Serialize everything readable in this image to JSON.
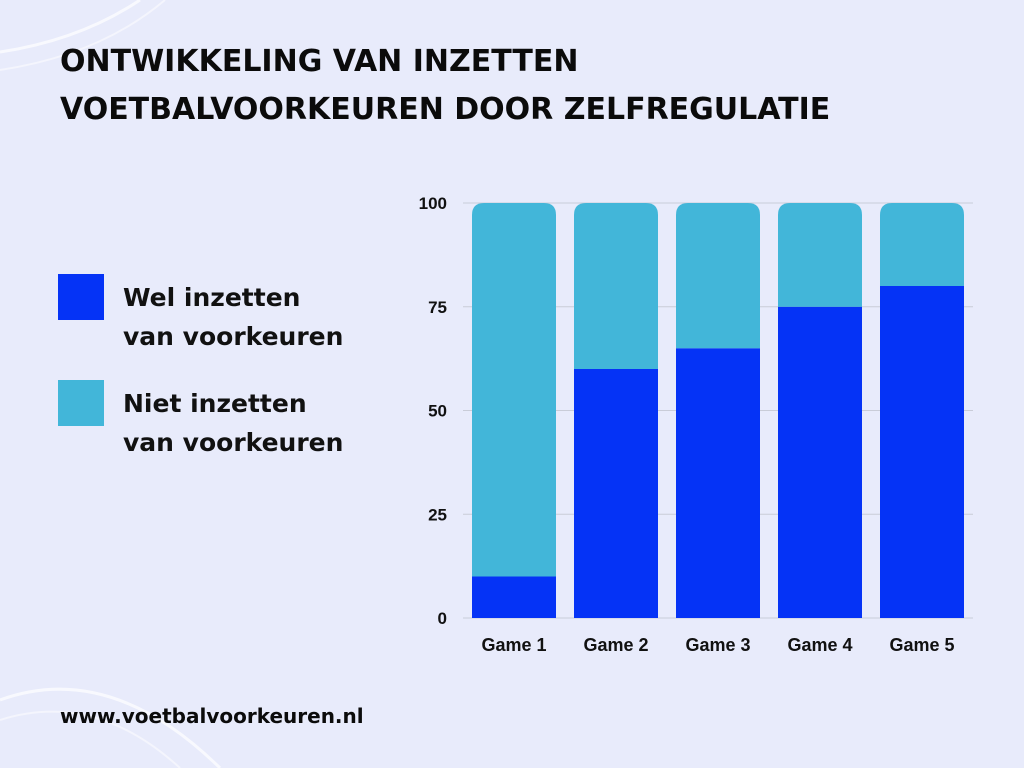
{
  "title_lines": [
    "ONTWIKKELING VAN INZETTEN",
    "VOETBALVOORKEUREN DOOR ZELFREGULATIE"
  ],
  "legend": [
    {
      "lines": [
        "Wel inzetten",
        "van voorkeuren"
      ],
      "color": "#0533f6"
    },
    {
      "lines": [
        "Niet inzetten",
        "van voorkeuren"
      ],
      "color": "#42b6d9"
    }
  ],
  "chart_data": {
    "type": "bar",
    "stacked": true,
    "categories": [
      "Game 1",
      "Game 2",
      "Game 3",
      "Game 4",
      "Game 5"
    ],
    "series": [
      {
        "name": "Wel inzetten van voorkeuren",
        "values": [
          10,
          60,
          65,
          75,
          80
        ],
        "color": "#0533f6"
      },
      {
        "name": "Niet inzetten van voorkeuren",
        "values": [
          90,
          40,
          35,
          25,
          20
        ],
        "color": "#42b6d9"
      }
    ],
    "yticks": [
      0,
      25,
      50,
      75,
      100
    ],
    "ylim": [
      0,
      100
    ],
    "grid": true,
    "legend_position": "left"
  },
  "footer": "www.voetbalvoorkeuren.nl"
}
